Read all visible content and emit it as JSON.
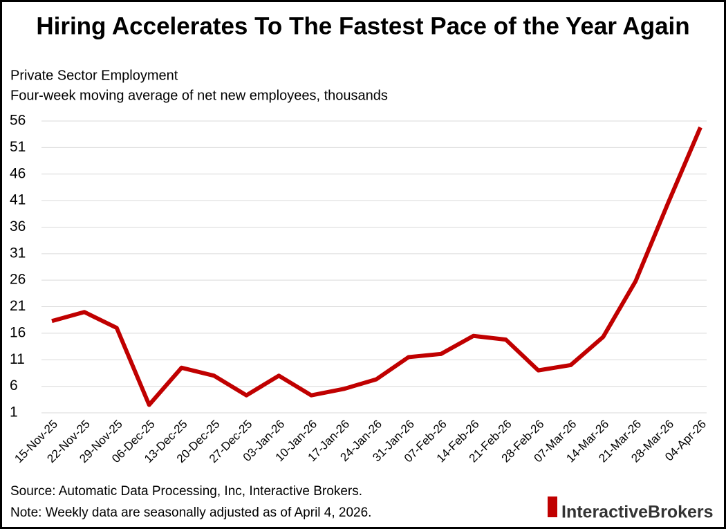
{
  "chart_data": {
    "type": "line",
    "title": "Hiring Accelerates To The Fastest Pace of the Year Again",
    "subtitle": "Private Sector Employment",
    "y_label": "Four-week moving average of net new employees, thousands",
    "categories": [
      "15-Nov-25",
      "22-Nov-25",
      "29-Nov-25",
      "06-Dec-25",
      "13-Dec-25",
      "20-Dec-25",
      "27-Dec-25",
      "03-Jan-26",
      "10-Jan-26",
      "17-Jan-26",
      "24-Jan-26",
      "31-Jan-26",
      "07-Feb-26",
      "14-Feb-26",
      "21-Feb-26",
      "28-Feb-26",
      "07-Mar-26",
      "14-Mar-26",
      "21-Mar-26",
      "28-Mar-26",
      "04-Apr-26"
    ],
    "values": [
      18.3,
      20.0,
      17.0,
      2.5,
      9.5,
      8.0,
      4.3,
      8.0,
      4.3,
      5.5,
      7.3,
      11.5,
      12.1,
      15.5,
      14.8,
      9.0,
      10.0,
      15.3,
      25.8,
      40.5,
      54.8
    ],
    "color": "#c00000",
    "ylim": [
      1,
      56
    ],
    "yticks": [
      1,
      6,
      11,
      16,
      21,
      26,
      31,
      36,
      41,
      46,
      51,
      56
    ],
    "grid": true,
    "source": "Source: Automatic Data Processing, Inc, Interactive Brokers.",
    "note": "Note: Weekly data are seasonally adjusted as of April 4, 2026.",
    "brand": "InteractiveBrokers"
  }
}
